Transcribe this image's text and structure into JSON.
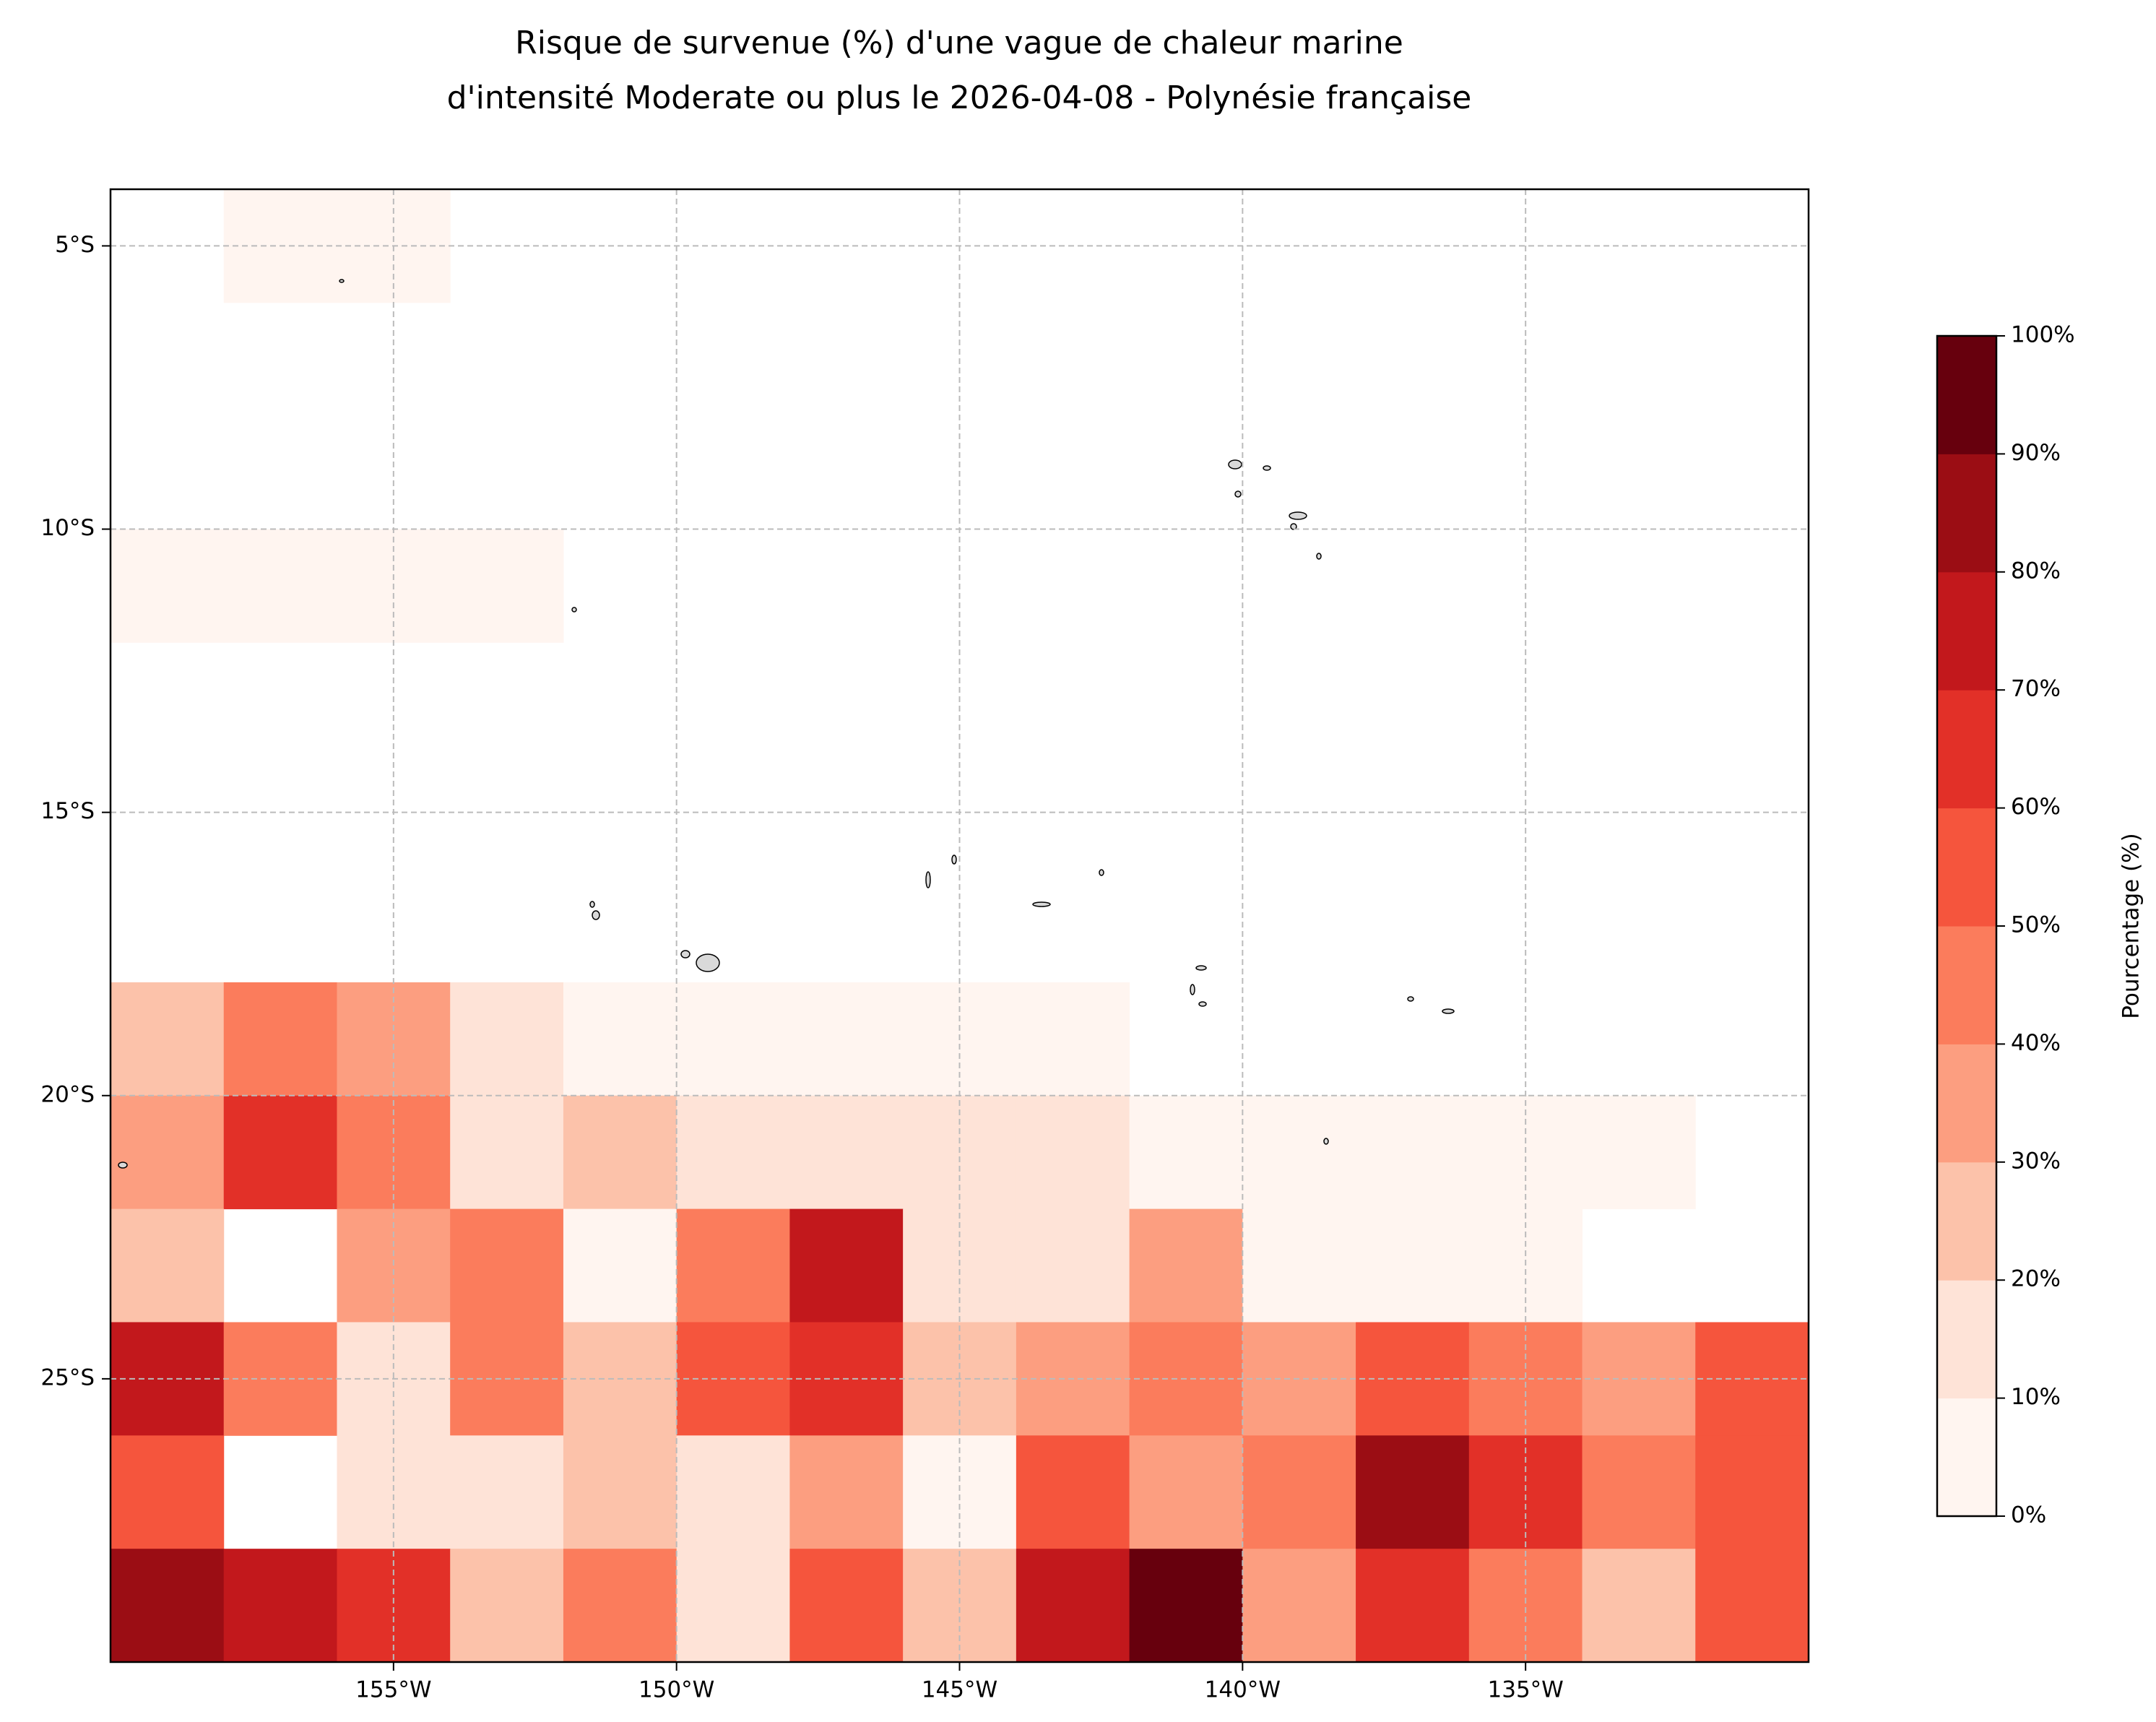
{
  "chart_data": {
    "type": "contour",
    "title": [
      "Risque de survenue (%) d'une vague de chaleur marine",
      "d'intensité Moderate ou plus le 2026-04-08 - Polynésie française"
    ],
    "xlim": [
      -160,
      -130
    ],
    "ylim": [
      -30,
      -4
    ],
    "xticks": [
      {
        "value": -155,
        "label": "155°W"
      },
      {
        "value": -150,
        "label": "150°W"
      },
      {
        "value": -145,
        "label": "145°W"
      },
      {
        "value": -140,
        "label": "140°W"
      },
      {
        "value": -135,
        "label": "135°W"
      }
    ],
    "yticks": [
      {
        "value": -5,
        "label": "5°S"
      },
      {
        "value": -10,
        "label": "10°S"
      },
      {
        "value": -15,
        "label": "15°S"
      },
      {
        "value": -20,
        "label": "20°S"
      },
      {
        "value": -25,
        "label": "25°S"
      }
    ],
    "grid": true,
    "x": [
      -159,
      -157,
      -155,
      -153,
      -151,
      -149,
      -147,
      -145,
      -143,
      -141,
      -139,
      -137,
      -135,
      -133,
      -131
    ],
    "y": [
      -5,
      -7,
      -9,
      -11,
      -13,
      -15,
      -17,
      -19,
      -21,
      -23,
      -25,
      -27,
      -29
    ],
    "z": [
      [
        0,
        5,
        5,
        0,
        0,
        0,
        0,
        0,
        0,
        0,
        0,
        0,
        0,
        0,
        0
      ],
      [
        0,
        0,
        0,
        0,
        0,
        0,
        0,
        0,
        0,
        0,
        0,
        0,
        0,
        0,
        0
      ],
      [
        0,
        0,
        0,
        0,
        0,
        0,
        0,
        0,
        0,
        0,
        0,
        0,
        0,
        0,
        0
      ],
      [
        5,
        5,
        5,
        5,
        0,
        0,
        0,
        0,
        0,
        0,
        0,
        0,
        0,
        0,
        0
      ],
      [
        0,
        0,
        0,
        0,
        0,
        0,
        0,
        0,
        0,
        0,
        0,
        0,
        0,
        0,
        0
      ],
      [
        0,
        0,
        0,
        0,
        0,
        0,
        0,
        0,
        0,
        0,
        0,
        0,
        0,
        0,
        0
      ],
      [
        0,
        0,
        0,
        0,
        0,
        0,
        0,
        0,
        0,
        0,
        0,
        0,
        0,
        0,
        0
      ],
      [
        20,
        40,
        30,
        10,
        5,
        5,
        5,
        5,
        5,
        0,
        0,
        0,
        0,
        0,
        0
      ],
      [
        30,
        65,
        40,
        10,
        20,
        10,
        10,
        15,
        10,
        5,
        5,
        5,
        5,
        5,
        0
      ],
      [
        20,
        0,
        30,
        40,
        5,
        40,
        70,
        15,
        10,
        35,
        5,
        5,
        5,
        0,
        0
      ],
      [
        70,
        40,
        10,
        40,
        20,
        50,
        60,
        20,
        30,
        40,
        30,
        50,
        40,
        30,
        50
      ],
      [
        50,
        0,
        10,
        10,
        20,
        10,
        30,
        5,
        50,
        30,
        40,
        80,
        60,
        40,
        50
      ],
      [
        80,
        70,
        60,
        20,
        40,
        10,
        50,
        20,
        70,
        90,
        30,
        60,
        40,
        20,
        50
      ]
    ],
    "colorbar": {
      "label": "Pourcentage (%)",
      "ticks": [
        {
          "value": 0,
          "label": "0%"
        },
        {
          "value": 10,
          "label": "10%"
        },
        {
          "value": 20,
          "label": "20%"
        },
        {
          "value": 30,
          "label": "30%"
        },
        {
          "value": 40,
          "label": "40%"
        },
        {
          "value": 50,
          "label": "50%"
        },
        {
          "value": 60,
          "label": "60%"
        },
        {
          "value": 70,
          "label": "70%"
        },
        {
          "value": 80,
          "label": "80%"
        },
        {
          "value": 90,
          "label": "90%"
        },
        {
          "value": 100,
          "label": "100%"
        }
      ],
      "colors": [
        "#fff5f0",
        "#fee3d7",
        "#fcc2aa",
        "#fc9e80",
        "#fb7c5c",
        "#f5553d",
        "#e23028",
        "#c2181c",
        "#9b0d14",
        "#67000d"
      ]
    }
  }
}
